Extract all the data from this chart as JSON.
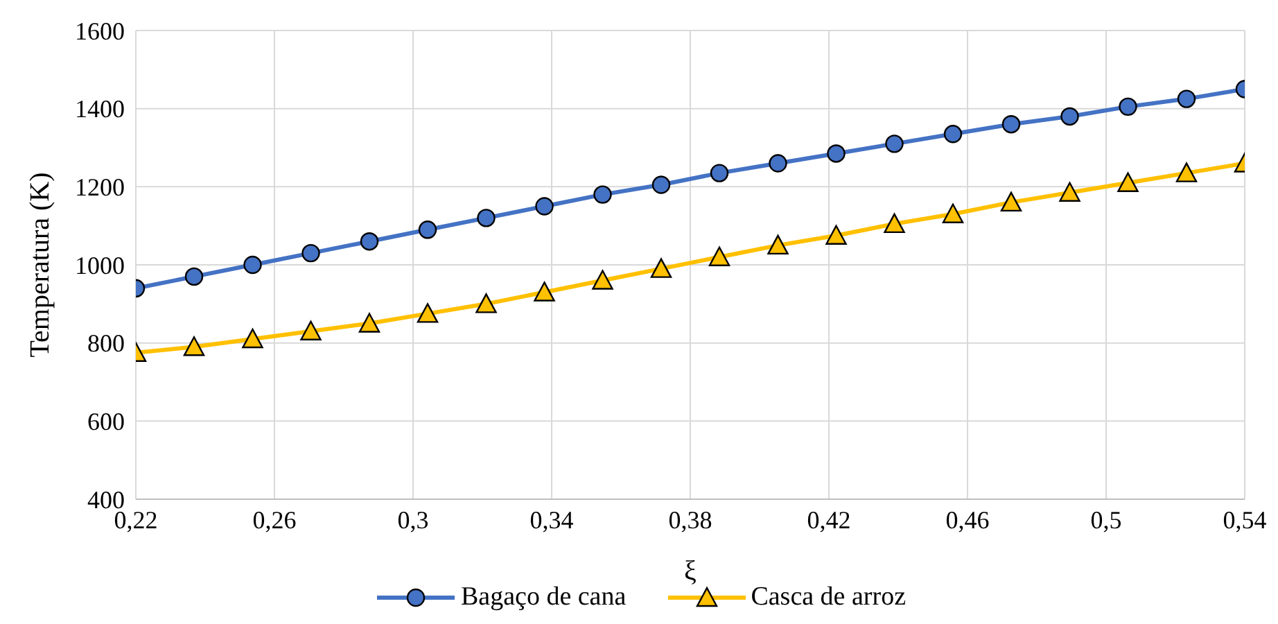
{
  "chart_data": {
    "type": "line",
    "xlabel": "ξ",
    "ylabel": "Temperatura (K)",
    "x": [
      0.22,
      0.2368,
      0.2537,
      0.2705,
      0.2874,
      0.3042,
      0.3211,
      0.3379,
      0.3547,
      0.3716,
      0.3884,
      0.4053,
      0.4221,
      0.4389,
      0.4558,
      0.4726,
      0.4895,
      0.5063,
      0.5232,
      0.54
    ],
    "series": [
      {
        "name": "Bagaço de cana",
        "color": "#4472c4",
        "marker": "circle",
        "values": [
          940,
          970,
          1000,
          1030,
          1060,
          1090,
          1120,
          1150,
          1180,
          1205,
          1235,
          1260,
          1285,
          1310,
          1335,
          1360,
          1380,
          1405,
          1425,
          1450
        ]
      },
      {
        "name": "Casca de arroz",
        "color": "#ffc000",
        "marker": "triangle",
        "values": [
          775,
          790,
          810,
          830,
          850,
          875,
          900,
          930,
          960,
          990,
          1020,
          1050,
          1075,
          1105,
          1130,
          1160,
          1185,
          1210,
          1235,
          1260
        ]
      }
    ],
    "xlim": [
      0.22,
      0.54
    ],
    "xticks": [
      {
        "value": 0.22,
        "label": "0,22"
      },
      {
        "value": 0.26,
        "label": "0,26"
      },
      {
        "value": 0.3,
        "label": "0,3"
      },
      {
        "value": 0.34,
        "label": "0,34"
      },
      {
        "value": 0.38,
        "label": "0,38"
      },
      {
        "value": 0.42,
        "label": "0,42"
      },
      {
        "value": 0.46,
        "label": "0,46"
      },
      {
        "value": 0.5,
        "label": "0,5"
      },
      {
        "value": 0.54,
        "label": "0,54"
      }
    ],
    "ylim": [
      400,
      1600
    ],
    "yticks": [
      400,
      600,
      800,
      1000,
      1200,
      1400,
      1600
    ],
    "grid": true,
    "legend": "bottom",
    "line_style": "solid"
  }
}
